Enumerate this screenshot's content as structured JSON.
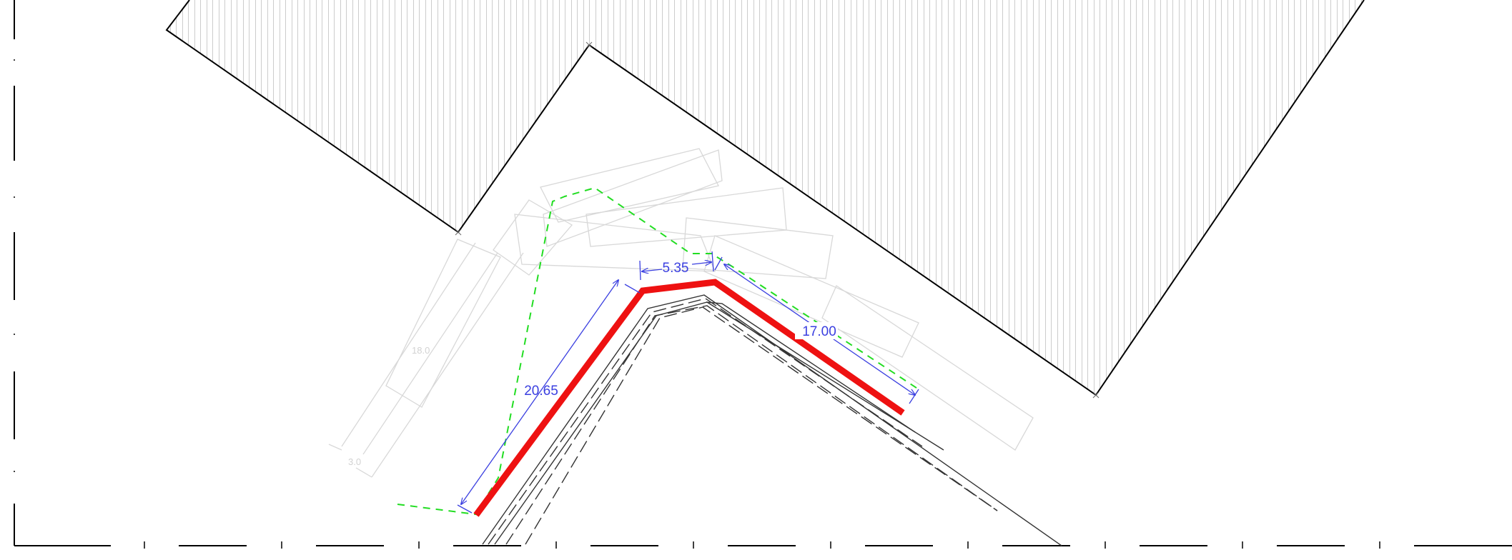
{
  "drawing": {
    "colors": {
      "background": "#ffffff",
      "building_outline": "#000000",
      "hatch": "#9a9a9a",
      "highlight_path": "#ee1111",
      "dimension": "#3a3fe0",
      "boundary_dashed": "#22dd22",
      "faint_geometry": "#d8d8d8",
      "road_lines": "#333333",
      "frame": "#000000"
    },
    "dimensions": {
      "left_segment": "20.65",
      "top_segment": "5.35",
      "right_segment": "17.00"
    },
    "faint_labels": {
      "length_label": "18.0",
      "offset_label": "3.0"
    }
  }
}
